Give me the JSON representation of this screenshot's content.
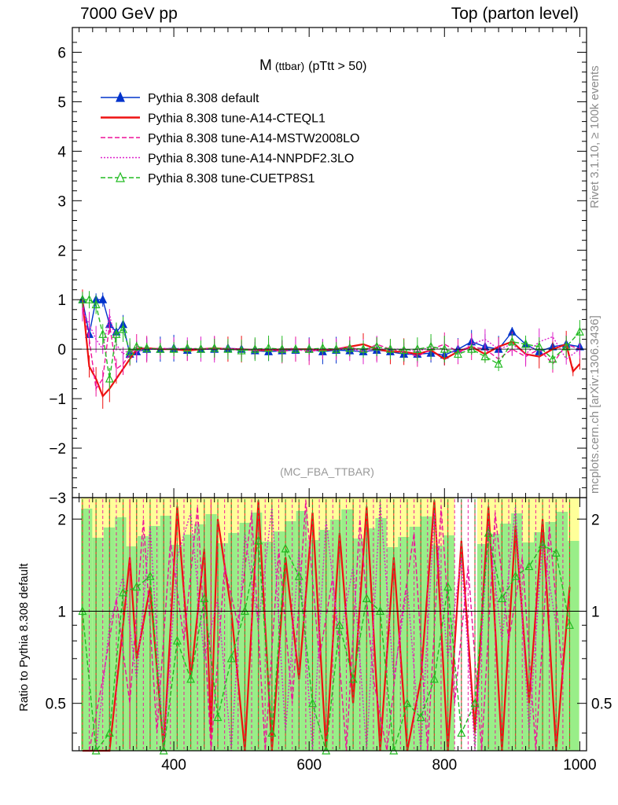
{
  "header": {
    "left": "7000 GeV pp",
    "right": "Top (parton level)"
  },
  "side_labels": {
    "rivet": "Rivet 3.1.10, ≥ 100k events",
    "mcplots": "mcplots.cern.ch [arXiv:1306.3436]"
  },
  "chart_data": [
    {
      "type": "line",
      "title": "M",
      "title_sub": "(ttbar)",
      "title_cut": "(pTtt > 50)",
      "watermark": "(MC_FBA_TTBAR)",
      "xlim": [
        250,
        1010
      ],
      "ylim": [
        -3,
        6.5
      ],
      "yticks": [
        "6",
        "5",
        "4",
        "3",
        "2",
        "1",
        "0",
        "−1",
        "−2",
        "−3"
      ],
      "xticks": [
        "400",
        "600",
        "800",
        "1000"
      ],
      "legend_position": "top-left",
      "series": [
        {
          "name": "Pythia 8.308 default",
          "color": "#0033cc",
          "style": "solid-triangle",
          "x": [
            265,
            275,
            285,
            295,
            305,
            315,
            325,
            335,
            345,
            360,
            380,
            400,
            420,
            440,
            460,
            480,
            500,
            520,
            540,
            560,
            580,
            600,
            620,
            640,
            660,
            680,
            700,
            720,
            740,
            760,
            780,
            800,
            820,
            840,
            860,
            880,
            900,
            920,
            940,
            960,
            980,
            1000
          ],
          "y": [
            1.0,
            0.3,
            1.0,
            1.0,
            0.5,
            0.35,
            0.5,
            -0.1,
            -0.05,
            0.0,
            0.0,
            0.02,
            -0.02,
            0.0,
            0.0,
            0.02,
            0.0,
            -0.03,
            -0.05,
            -0.03,
            -0.02,
            0.0,
            -0.05,
            -0.02,
            -0.03,
            -0.05,
            -0.02,
            -0.05,
            -0.1,
            -0.1,
            -0.08,
            -0.12,
            0.0,
            0.15,
            0.05,
            0.0,
            0.35,
            0.1,
            -0.05,
            0.05,
            0.1,
            0.05
          ]
        },
        {
          "name": "Pythia 8.308 tune-A14-CTEQL1",
          "color": "#ee1111",
          "style": "solid",
          "x": [
            265,
            275,
            285,
            295,
            305,
            315,
            325,
            335,
            345,
            360,
            380,
            400,
            420,
            440,
            460,
            480,
            500,
            520,
            540,
            560,
            580,
            600,
            620,
            640,
            660,
            680,
            700,
            720,
            740,
            760,
            780,
            800,
            820,
            840,
            860,
            880,
            900,
            920,
            940,
            960,
            980,
            990,
            1000
          ],
          "y": [
            1.0,
            -0.35,
            -0.6,
            -0.95,
            -0.8,
            -0.6,
            -0.4,
            -0.2,
            0.0,
            0.02,
            0.0,
            0.0,
            -0.03,
            0.0,
            0.02,
            0.0,
            0.0,
            -0.02,
            -0.02,
            0.0,
            0.0,
            0.0,
            -0.02,
            0.0,
            0.05,
            0.1,
            0.0,
            -0.05,
            -0.05,
            -0.1,
            -0.02,
            -0.2,
            -0.05,
            0.05,
            -0.1,
            0.05,
            0.15,
            -0.1,
            -0.15,
            0.0,
            0.1,
            -0.45,
            -0.3
          ]
        },
        {
          "name": "Pythia 8.308 tune-A14-MSTW2008LO",
          "color": "#ee1199",
          "style": "dashed",
          "x": [
            265,
            275,
            285,
            295,
            305,
            315,
            325,
            335,
            345,
            360,
            380,
            400,
            420,
            440,
            460,
            480,
            500,
            520,
            540,
            560,
            580,
            600,
            620,
            640,
            660,
            680,
            700,
            720,
            740,
            760,
            780,
            800,
            820,
            840,
            860,
            880,
            900,
            920,
            940,
            960,
            980,
            1000
          ],
          "y": [
            0.9,
            0.2,
            -0.8,
            -0.6,
            0.5,
            -0.4,
            -0.3,
            -0.1,
            0.05,
            0.0,
            0.02,
            0.0,
            0.0,
            0.02,
            0.0,
            0.0,
            -0.02,
            0.0,
            0.0,
            -0.05,
            0.0,
            -0.05,
            0.0,
            0.0,
            0.05,
            -0.05,
            0.1,
            0.0,
            -0.05,
            -0.15,
            0.0,
            0.1,
            -0.05,
            0.05,
            0.0,
            -0.2,
            0.0,
            -0.15,
            0.0,
            -0.3,
            0.1,
            0.0
          ]
        },
        {
          "name": "Pythia 8.308 tune-A14-NNPDF2.3LO",
          "color": "#dd22cc",
          "style": "dotted",
          "x": [
            265,
            275,
            285,
            295,
            305,
            315,
            325,
            335,
            345,
            360,
            380,
            400,
            420,
            440,
            460,
            480,
            500,
            520,
            540,
            560,
            580,
            600,
            620,
            640,
            660,
            680,
            700,
            720,
            740,
            760,
            780,
            800,
            820,
            840,
            860,
            880,
            900,
            920,
            940,
            960,
            980,
            1000
          ],
          "y": [
            0.8,
            0.5,
            0.2,
            0.0,
            0.7,
            0.1,
            -0.1,
            0.0,
            -0.05,
            0.0,
            0.0,
            0.02,
            0.0,
            0.0,
            0.0,
            0.02,
            0.0,
            -0.02,
            0.0,
            0.0,
            0.02,
            -0.02,
            0.0,
            0.0,
            0.0,
            -0.05,
            0.0,
            0.0,
            0.0,
            -0.05,
            0.05,
            0.0,
            -0.1,
            0.1,
            0.2,
            0.0,
            0.1,
            -0.1,
            0.15,
            0.25,
            -0.2,
            0.0
          ]
        },
        {
          "name": "Pythia 8.308 tune-CUETP8S1",
          "color": "#22bb22",
          "style": "dashed-open-triangle",
          "x": [
            265,
            275,
            285,
            295,
            305,
            315,
            325,
            335,
            345,
            360,
            380,
            400,
            420,
            440,
            460,
            480,
            500,
            520,
            540,
            560,
            580,
            600,
            620,
            640,
            660,
            680,
            700,
            720,
            740,
            760,
            780,
            800,
            820,
            840,
            860,
            880,
            900,
            920,
            940,
            960,
            980,
            1000
          ],
          "y": [
            1.0,
            1.0,
            0.9,
            0.3,
            -0.6,
            0.3,
            0.4,
            -0.05,
            0.05,
            0.02,
            0.0,
            0.0,
            0.02,
            0.0,
            0.02,
            0.0,
            -0.03,
            0.0,
            0.02,
            0.0,
            0.0,
            0.0,
            0.02,
            0.0,
            0.02,
            0.0,
            0.05,
            0.0,
            -0.02,
            0.0,
            0.05,
            0.0,
            -0.1,
            0.0,
            -0.15,
            -0.3,
            0.15,
            0.1,
            0.05,
            -0.2,
            0.05,
            0.35
          ]
        }
      ]
    },
    {
      "type": "line",
      "ylabel": "Ratio to Pythia 8.308 default",
      "xlim": [
        250,
        1010
      ],
      "ylim": [
        0.35,
        2.35
      ],
      "yticks": [
        "2",
        "1",
        "0.5"
      ],
      "xticks": [
        "400",
        "600",
        "800",
        "1000"
      ],
      "reference_line": 1,
      "bands": "green ±1σ, yellow ±2σ statistical uncertainty of reference",
      "series": [
        {
          "name": "Pythia 8.308 tune-A14-CTEQL1",
          "color": "#ee1111",
          "x": [
            265,
            285,
            305,
            325,
            335,
            345,
            365,
            385,
            405,
            425,
            445,
            455,
            465,
            485,
            505,
            525,
            545,
            565,
            585,
            605,
            625,
            645,
            665,
            685,
            705,
            725,
            745,
            765,
            785,
            805,
            825,
            845,
            865,
            885,
            905,
            925,
            945,
            965,
            985
          ],
          "y": [
            0.35,
            0.35,
            0.35,
            0.9,
            1.5,
            0.7,
            1.2,
            0.35,
            2.2,
            0.6,
            1.6,
            0.4,
            2.0,
            1.0,
            0.35,
            2.3,
            0.35,
            1.5,
            0.6,
            2.1,
            0.35,
            1.8,
            0.5,
            2.2,
            0.35,
            1.5,
            0.35,
            0.6,
            2.3,
            0.35,
            1.7,
            0.4,
            2.2,
            0.35,
            1.9,
            0.5,
            2.0,
            0.35,
            1.2
          ]
        },
        {
          "name": "Pythia 8.308 tune-A14-MSTW2008LO",
          "color": "#ee1199",
          "x": [
            275,
            295,
            315,
            335,
            355,
            375,
            395,
            415,
            435,
            455,
            475,
            495,
            515,
            535,
            555,
            575,
            595,
            615,
            635,
            655,
            675,
            695,
            715,
            735,
            755,
            775,
            795,
            815,
            835,
            855,
            875,
            895,
            915,
            935,
            955,
            975
          ],
          "y": [
            0.35,
            0.6,
            1.1,
            0.5,
            2.0,
            0.4,
            1.7,
            0.8,
            2.2,
            0.35,
            1.4,
            0.9,
            2.1,
            0.35,
            1.6,
            0.5,
            2.3,
            0.7,
            1.3,
            0.35,
            2.0,
            0.6,
            0.35,
            0.9,
            1.8,
            0.35,
            2.2,
            0.5,
            1.4,
            0.35,
            2.1,
            0.8,
            1.5,
            0.35,
            1.9,
            0.6
          ]
        },
        {
          "name": "Pythia 8.308 tune-A14-NNPDF2.3LO",
          "color": "#dd22cc",
          "x": [
            285,
            305,
            325,
            345,
            365,
            385,
            405,
            425,
            445,
            465,
            485,
            505,
            525,
            545,
            565,
            585,
            605,
            625,
            645,
            665,
            685,
            705,
            725,
            745,
            765,
            785,
            805,
            825,
            845,
            865,
            885,
            905,
            925,
            945,
            965
          ],
          "y": [
            0.35,
            0.9,
            1.3,
            0.6,
            1.9,
            0.35,
            1.5,
            2.1,
            0.7,
            1.1,
            0.35,
            1.8,
            0.9,
            2.2,
            0.4,
            1.6,
            0.35,
            2.0,
            0.8,
            1.4,
            0.35,
            2.3,
            0.6,
            1.2,
            0.35,
            2.1,
            0.7,
            1.5,
            0.35,
            1.9,
            0.8,
            2.2,
            0.4,
            1.7,
            0.9
          ]
        },
        {
          "name": "Pythia 8.308 tune-CUETP8S1",
          "color": "#22bb22",
          "x": [
            265,
            285,
            305,
            325,
            345,
            365,
            385,
            405,
            425,
            445,
            465,
            485,
            505,
            525,
            545,
            565,
            585,
            605,
            625,
            645,
            665,
            685,
            705,
            725,
            745,
            765,
            785,
            805,
            825,
            845,
            865,
            885,
            905,
            925,
            945,
            965,
            985
          ],
          "y": [
            1.0,
            0.35,
            0.4,
            1.15,
            1.2,
            1.3,
            0.35,
            0.8,
            0.6,
            1.1,
            0.45,
            0.7,
            1.0,
            1.7,
            0.4,
            1.6,
            1.3,
            0.5,
            0.35,
            0.9,
            0.6,
            1.1,
            1.0,
            0.35,
            0.5,
            0.45,
            0.6,
            1.2,
            0.4,
            0.5,
            1.8,
            1.1,
            1.3,
            1.4,
            1.65,
            1.55,
            0.9
          ]
        }
      ]
    }
  ]
}
